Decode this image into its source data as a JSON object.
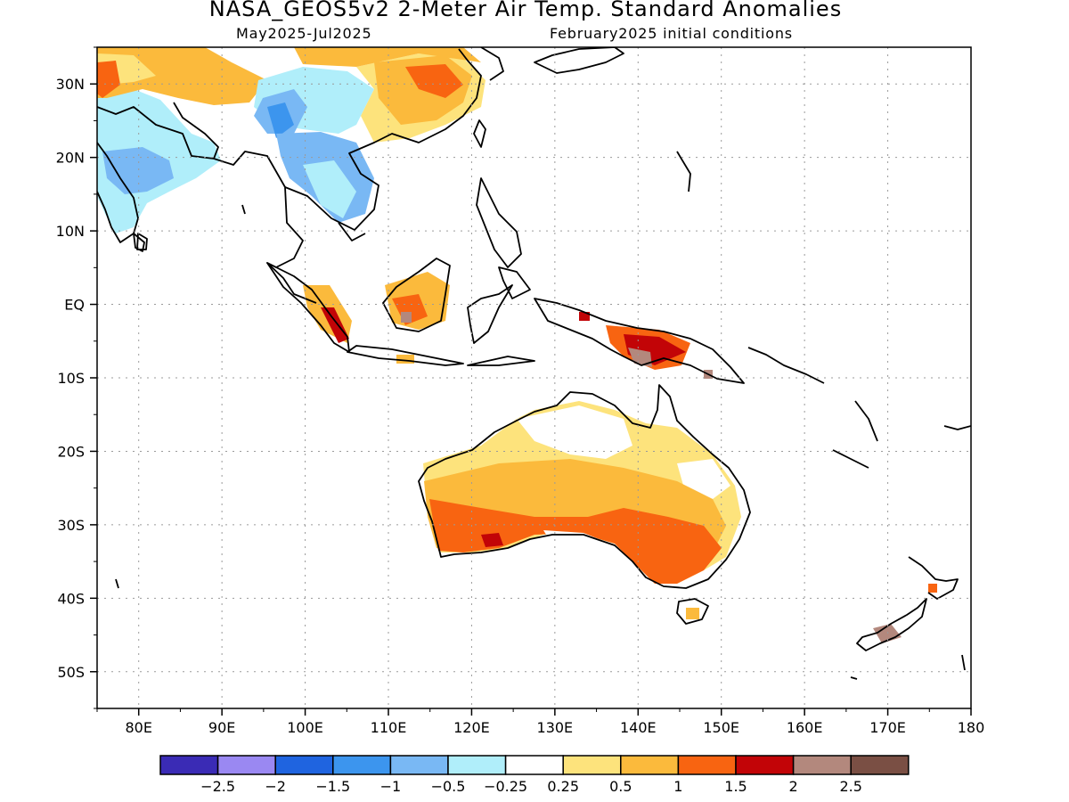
{
  "title": "NASA_GEOS5v2 2-Meter Air Temp. Standard Anomalies",
  "period": "May2025-Jul2025",
  "init": "February2025 initial conditions",
  "lat_labels": [
    "30N",
    "20N",
    "10N",
    "EQ",
    "10S",
    "20S",
    "30S",
    "40S",
    "50S"
  ],
  "lon_labels": [
    "80E",
    "90E",
    "100E",
    "110E",
    "120E",
    "130E",
    "140E",
    "150E",
    "160E",
    "170E",
    "180"
  ],
  "map_extent": {
    "lon": [
      75,
      180
    ],
    "lat": [
      -55,
      35
    ]
  },
  "colorbar": {
    "colors": [
      "#3a2bb5",
      "#9a88f2",
      "#1f64e0",
      "#3c95ee",
      "#79b8f4",
      "#b0eefa",
      "#ffffff",
      "#fde37c",
      "#fbba3c",
      "#f86411",
      "#c20407",
      "#b3887d",
      "#7a4f44"
    ],
    "labels": [
      "-2.5",
      "-2",
      "-1.5",
      "-1",
      "-0.5",
      "-0.25",
      "0.25",
      "0.5",
      "1",
      "1.5",
      "2",
      "2.5"
    ]
  }
}
